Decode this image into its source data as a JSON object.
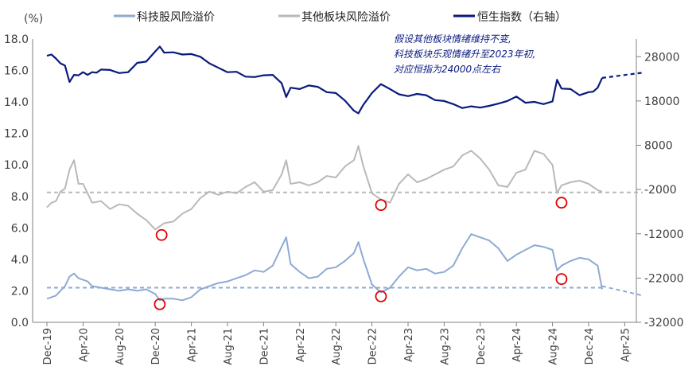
{
  "chart_data": {
    "type": "line",
    "left_axis_unit": "(%)",
    "legend": [
      {
        "name": "科技股风险溢价",
        "color": "#8eaad3"
      },
      {
        "name": "其他板块风险溢价",
        "color": "#b9b9b9"
      },
      {
        "name": "恒生指数（右轴）",
        "color": "#0a1a7c"
      }
    ],
    "annotation": [
      "假设其他板块情绪维持不变,",
      "科技板块乐观情绪升至2023年初,",
      "对应恒指为24000点左右"
    ],
    "y_left": {
      "min": 0,
      "max": 18,
      "ticks": [
        "0.0",
        "2.0",
        "4.0",
        "6.0",
        "8.0",
        "10.0",
        "12.0",
        "14.0",
        "16.0",
        "18.0"
      ]
    },
    "y_right": {
      "min": -32000,
      "max": 32000,
      "ticks": [
        "-32000",
        "-22000",
        "-12000",
        "-2000",
        "8000",
        "18000",
        "28000"
      ]
    },
    "x_ticks": [
      "Dec-19",
      "Apr-20",
      "Aug-20",
      "Dec-20",
      "Apr-21",
      "Aug-21",
      "Dec-21",
      "Apr-22",
      "Aug-22",
      "Dec-22",
      "Apr-23",
      "Aug-23",
      "Dec-23",
      "Apr-24",
      "Aug-24",
      "Dec-24",
      "Apr-25"
    ],
    "x_range_months": [
      0,
      66
    ],
    "series": [
      {
        "name": "恒生指数",
        "axis": "right",
        "color": "#0a1a7c",
        "points": [
          [
            0,
            28200
          ],
          [
            0.5,
            28500
          ],
          [
            1,
            27600
          ],
          [
            1.5,
            26500
          ],
          [
            2,
            26000
          ],
          [
            2.5,
            22300
          ],
          [
            3,
            23900
          ],
          [
            3.5,
            23800
          ],
          [
            4,
            24500
          ],
          [
            4.5,
            23900
          ],
          [
            5,
            24500
          ],
          [
            5.5,
            24400
          ],
          [
            6,
            25100
          ],
          [
            7,
            25000
          ],
          [
            8,
            24300
          ],
          [
            9,
            24500
          ],
          [
            10,
            26600
          ],
          [
            11,
            26900
          ],
          [
            12,
            29200
          ],
          [
            12.5,
            30300
          ],
          [
            13,
            28900
          ],
          [
            14,
            29000
          ],
          [
            15,
            28500
          ],
          [
            16,
            28600
          ],
          [
            17,
            28000
          ],
          [
            18,
            26500
          ],
          [
            19,
            25500
          ],
          [
            20,
            24500
          ],
          [
            21,
            24600
          ],
          [
            22,
            23500
          ],
          [
            23,
            23400
          ],
          [
            24,
            23800
          ],
          [
            25,
            23900
          ],
          [
            26,
            22000
          ],
          [
            26.5,
            18900
          ],
          [
            27,
            21000
          ],
          [
            28,
            20700
          ],
          [
            29,
            21500
          ],
          [
            30,
            21200
          ],
          [
            31,
            20000
          ],
          [
            32,
            19800
          ],
          [
            33,
            18100
          ],
          [
            34,
            15800
          ],
          [
            34.5,
            15200
          ],
          [
            35,
            17000
          ],
          [
            36,
            19800
          ],
          [
            37,
            21800
          ],
          [
            38,
            20700
          ],
          [
            39,
            19500
          ],
          [
            40,
            19100
          ],
          [
            41,
            19600
          ],
          [
            42,
            19300
          ],
          [
            43,
            18200
          ],
          [
            44,
            18000
          ],
          [
            45,
            17300
          ],
          [
            46,
            16400
          ],
          [
            47,
            16800
          ],
          [
            48,
            16500
          ],
          [
            49,
            16900
          ],
          [
            50,
            17400
          ],
          [
            51,
            18000
          ],
          [
            52,
            19000
          ],
          [
            53,
            17600
          ],
          [
            54,
            17800
          ],
          [
            55,
            17300
          ],
          [
            56,
            17900
          ],
          [
            56.5,
            22800
          ],
          [
            57,
            20800
          ],
          [
            58,
            20700
          ],
          [
            59,
            19300
          ],
          [
            60,
            20000
          ],
          [
            60.5,
            20100
          ],
          [
            61,
            21000
          ],
          [
            61.5,
            23200
          ]
        ]
      },
      {
        "name": "恒生指数假设",
        "axis": "right",
        "color": "#0a1a7c",
        "dashed": true,
        "points": [
          [
            61.5,
            23200
          ],
          [
            66,
            24400
          ]
        ]
      },
      {
        "name": "其他板块风险溢价",
        "axis": "left",
        "color": "#b9b9b9",
        "points": [
          [
            0,
            7.3
          ],
          [
            0.5,
            7.6
          ],
          [
            1,
            7.7
          ],
          [
            1.5,
            8.3
          ],
          [
            2,
            8.5
          ],
          [
            2.5,
            9.7
          ],
          [
            3,
            10.3
          ],
          [
            3.5,
            8.8
          ],
          [
            4,
            8.8
          ],
          [
            4.5,
            8.2
          ],
          [
            5,
            7.6
          ],
          [
            6,
            7.7
          ],
          [
            7,
            7.2
          ],
          [
            8,
            7.5
          ],
          [
            9,
            7.4
          ],
          [
            10,
            6.9
          ],
          [
            11,
            6.5
          ],
          [
            12,
            5.9
          ],
          [
            13,
            6.3
          ],
          [
            14,
            6.4
          ],
          [
            15,
            6.9
          ],
          [
            16,
            7.2
          ],
          [
            17,
            7.9
          ],
          [
            18,
            8.3
          ],
          [
            19,
            8.1
          ],
          [
            20,
            8.3
          ],
          [
            21,
            8.2
          ],
          [
            22,
            8.6
          ],
          [
            23,
            8.9
          ],
          [
            24,
            8.3
          ],
          [
            25,
            8.4
          ],
          [
            26,
            9.4
          ],
          [
            26.5,
            10.3
          ],
          [
            27,
            8.8
          ],
          [
            28,
            8.9
          ],
          [
            29,
            8.7
          ],
          [
            30,
            8.9
          ],
          [
            31,
            9.3
          ],
          [
            32,
            9.2
          ],
          [
            33,
            9.9
          ],
          [
            34,
            10.3
          ],
          [
            34.5,
            11.2
          ],
          [
            35,
            10.0
          ],
          [
            36,
            8.2
          ],
          [
            37,
            7.8
          ],
          [
            38,
            7.6
          ],
          [
            39,
            8.8
          ],
          [
            40,
            9.4
          ],
          [
            41,
            8.9
          ],
          [
            42,
            9.1
          ],
          [
            43,
            9.4
          ],
          [
            44,
            9.7
          ],
          [
            45,
            9.9
          ],
          [
            46,
            10.6
          ],
          [
            47,
            10.9
          ],
          [
            48,
            10.4
          ],
          [
            49,
            9.7
          ],
          [
            50,
            8.7
          ],
          [
            51,
            8.6
          ],
          [
            52,
            9.5
          ],
          [
            53,
            9.7
          ],
          [
            54,
            10.9
          ],
          [
            55,
            10.7
          ],
          [
            56,
            10.0
          ],
          [
            56.5,
            8.2
          ],
          [
            57,
            8.7
          ],
          [
            58,
            8.9
          ],
          [
            59,
            9.0
          ],
          [
            60,
            8.8
          ],
          [
            61,
            8.4
          ],
          [
            61.5,
            8.3
          ]
        ]
      },
      {
        "name": "其他板块均值",
        "axis": "left",
        "color": "#b9b9b9",
        "dashed": true,
        "points": [
          [
            0,
            8.25
          ],
          [
            66,
            8.25
          ]
        ]
      },
      {
        "name": "科技股风险溢价",
        "axis": "left",
        "color": "#8eaad3",
        "points": [
          [
            0,
            1.5
          ],
          [
            0.5,
            1.6
          ],
          [
            1,
            1.7
          ],
          [
            1.5,
            2.0
          ],
          [
            2,
            2.3
          ],
          [
            2.5,
            2.9
          ],
          [
            3,
            3.1
          ],
          [
            3.5,
            2.8
          ],
          [
            4,
            2.7
          ],
          [
            4.5,
            2.6
          ],
          [
            5,
            2.3
          ],
          [
            6,
            2.2
          ],
          [
            7,
            2.1
          ],
          [
            8,
            2.0
          ],
          [
            9,
            2.1
          ],
          [
            10,
            2.0
          ],
          [
            11,
            2.1
          ],
          [
            12,
            1.8
          ],
          [
            12.5,
            1.4
          ],
          [
            13,
            1.5
          ],
          [
            14,
            1.5
          ],
          [
            15,
            1.4
          ],
          [
            16,
            1.6
          ],
          [
            17,
            2.1
          ],
          [
            18,
            2.3
          ],
          [
            19,
            2.5
          ],
          [
            20,
            2.6
          ],
          [
            21,
            2.8
          ],
          [
            22,
            3.0
          ],
          [
            23,
            3.3
          ],
          [
            24,
            3.2
          ],
          [
            25,
            3.6
          ],
          [
            26,
            4.8
          ],
          [
            26.5,
            5.4
          ],
          [
            27,
            3.7
          ],
          [
            28,
            3.2
          ],
          [
            29,
            2.8
          ],
          [
            30,
            2.9
          ],
          [
            31,
            3.4
          ],
          [
            32,
            3.5
          ],
          [
            33,
            3.9
          ],
          [
            34,
            4.4
          ],
          [
            34.5,
            5.1
          ],
          [
            35,
            4.1
          ],
          [
            36,
            2.4
          ],
          [
            37,
            1.9
          ],
          [
            38,
            2.2
          ],
          [
            39,
            2.9
          ],
          [
            40,
            3.5
          ],
          [
            41,
            3.3
          ],
          [
            42,
            3.4
          ],
          [
            43,
            3.1
          ],
          [
            44,
            3.2
          ],
          [
            45,
            3.6
          ],
          [
            46,
            4.7
          ],
          [
            47,
            5.6
          ],
          [
            48,
            5.4
          ],
          [
            49,
            5.2
          ],
          [
            50,
            4.7
          ],
          [
            51,
            3.9
          ],
          [
            52,
            4.3
          ],
          [
            53,
            4.6
          ],
          [
            54,
            4.9
          ],
          [
            55,
            4.8
          ],
          [
            56,
            4.6
          ],
          [
            56.5,
            3.3
          ],
          [
            57,
            3.6
          ],
          [
            58,
            3.9
          ],
          [
            59,
            4.1
          ],
          [
            60,
            4.0
          ],
          [
            61,
            3.6
          ],
          [
            61.5,
            2.1
          ]
        ]
      },
      {
        "name": "科技股均值",
        "axis": "left",
        "color": "#8eaad3",
        "dashed": true,
        "points": [
          [
            0,
            2.2
          ],
          [
            61.5,
            2.2
          ]
        ]
      },
      {
        "name": "科技股假设",
        "axis": "left",
        "color": "#8eaad3",
        "dashed": true,
        "points": [
          [
            61.5,
            2.3
          ],
          [
            66,
            1.7
          ]
        ]
      }
    ],
    "highlight_circles": [
      {
        "month": 12.7,
        "value": 5.55,
        "axis": "left"
      },
      {
        "month": 12.5,
        "value": 1.15,
        "axis": "left"
      },
      {
        "month": 37.0,
        "value": 7.45,
        "axis": "left"
      },
      {
        "month": 37.0,
        "value": 1.65,
        "axis": "left"
      },
      {
        "month": 57.0,
        "value": 7.6,
        "axis": "left"
      },
      {
        "month": 57.0,
        "value": 2.75,
        "axis": "left"
      }
    ]
  }
}
